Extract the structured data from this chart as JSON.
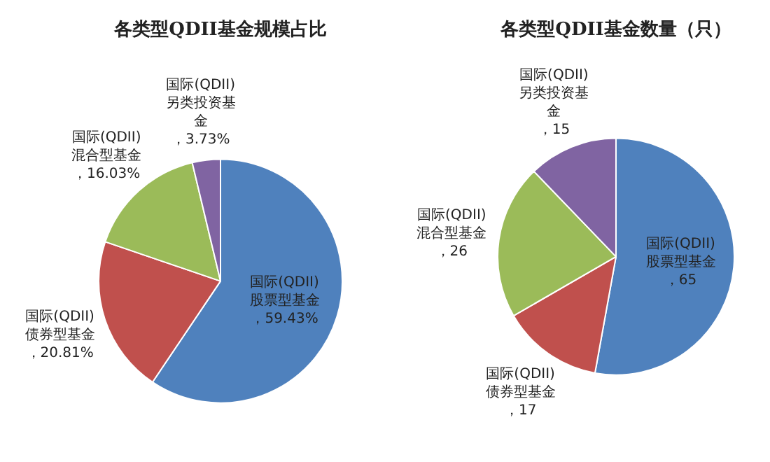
{
  "chart_data": [
    {
      "type": "pie",
      "title": "各类型QDII基金规模占比",
      "categories": [
        "国际(QDII)股票型基金",
        "国际(QDII)债券型基金",
        "国际(QDII)混合型基金",
        "国际(QDII)另类投资基金"
      ],
      "values": [
        59.43,
        20.81,
        16.03,
        3.73
      ],
      "colors": [
        "#4f81bd",
        "#c0504d",
        "#9bbb59",
        "#8064a2"
      ],
      "value_labels": [
        "，59.43%",
        "，20.81%",
        "，16.03%",
        "，3.73%"
      ]
    },
    {
      "type": "pie",
      "title": "各类型QDII基金数量（只）",
      "categories": [
        "国际(QDII)股票型基金",
        "国际(QDII)债券型基金",
        "国际(QDII)混合型基金",
        "国际(QDII)另类投资基金"
      ],
      "values": [
        65,
        17,
        26,
        15
      ],
      "colors": [
        "#4f81bd",
        "#c0504d",
        "#9bbb59",
        "#8064a2"
      ],
      "value_labels": [
        "，65",
        "，17",
        "，26",
        "，15"
      ]
    }
  ]
}
